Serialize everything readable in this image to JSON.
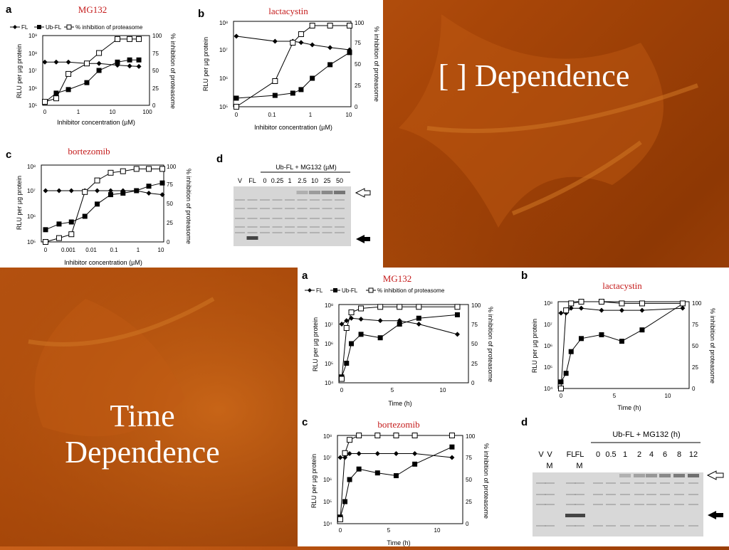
{
  "slide": {
    "title_right": "[ ]  Dependence",
    "title_left_line1": "Time",
    "title_left_line2": "Dependence",
    "colors": {
      "background": "#a84608",
      "label_red": "#c41a1a"
    }
  },
  "legend": {
    "fl": "FL",
    "ubfl": "Ub-FL",
    "inh": "% inhibition of proteasome"
  },
  "top_figure": {
    "panels": {
      "a": {
        "letter": "a",
        "label": "MG132"
      },
      "b": {
        "letter": "b",
        "label": "lactacystin"
      },
      "c": {
        "letter": "c",
        "label": "bortezomib"
      },
      "d": {
        "letter": "d"
      }
    },
    "ylabel": "RLU per µg protein",
    "y2label": "% inhibition of proteasome",
    "xlabel": "Inhibitor concentration (µM)",
    "y2_ticks": [
      "0",
      "25",
      "50",
      "75",
      "100"
    ],
    "a_y_ticks": [
      "10⁵",
      "10⁶",
      "10⁷",
      "10⁸",
      "10⁹"
    ],
    "a_x_ticks": [
      "0",
      "1",
      "10",
      "100"
    ],
    "b_y_ticks": [
      "10⁵",
      "10⁶",
      "10⁷",
      "10⁸"
    ],
    "b_x_ticks": [
      "0",
      "0.1",
      "1",
      "10"
    ],
    "c_y_ticks": [
      "10⁵",
      "10⁶",
      "10⁷",
      "10⁸"
    ],
    "c_x_ticks": [
      "0",
      "0.001",
      "0.01",
      "0.1",
      "1",
      "10"
    ],
    "gel": {
      "header": "Ub-FL + MG132 (µM)",
      "lanes": [
        "V",
        "FL",
        "0",
        "0.25",
        "1",
        "2.5",
        "10",
        "25",
        "50"
      ]
    }
  },
  "bottom_figure": {
    "panels": {
      "a": {
        "letter": "a",
        "label": "MG132"
      },
      "b": {
        "letter": "b",
        "label": "lactacystin"
      },
      "c": {
        "letter": "c",
        "label": "bortezomib"
      },
      "d": {
        "letter": "d"
      }
    },
    "ylabel": "RLU per µg protein",
    "y2label": "% inhibition of proteasome",
    "xlabel": "Time (h)",
    "y_ticks": [
      "10⁴",
      "10⁵",
      "10⁶",
      "10⁷",
      "10⁸"
    ],
    "y2_ticks": [
      "0",
      "25",
      "50",
      "75",
      "100"
    ],
    "x_ticks": [
      "0",
      "5",
      "10"
    ],
    "gel": {
      "header": "Ub-FL + MG132 (h)",
      "lanes": [
        "V",
        "V",
        "FL",
        "FL",
        "0",
        "0.5",
        "1",
        "2",
        "4",
        "6",
        "8",
        "12"
      ],
      "sublanes": [
        "M",
        "M"
      ]
    }
  },
  "chart_data": [
    {
      "type": "line",
      "title": "MG132",
      "xlabel": "Inhibitor concentration (µM)",
      "ylabel": "RLU per µg protein",
      "y2label": "% inhibition of proteasome",
      "x": [
        0,
        0.1,
        0.25,
        1,
        2.5,
        10,
        25,
        50
      ],
      "series": [
        {
          "name": "FL",
          "values": [
            30000000,
            30000000,
            30000000,
            25000000,
            25000000,
            20000000,
            18000000,
            17000000
          ]
        },
        {
          "name": "Ub-FL",
          "values": [
            150000,
            500000,
            800000,
            2000000,
            10000000,
            30000000,
            40000000,
            40000000
          ]
        },
        {
          "name": "% inhibition of proteasome",
          "values": [
            5,
            10,
            45,
            60,
            75,
            95,
            95,
            95
          ]
        }
      ]
    },
    {
      "type": "line",
      "title": "lactacystin",
      "xlabel": "Inhibitor concentration (µM)",
      "x": [
        0,
        0.1,
        0.3,
        0.5,
        1,
        3,
        10
      ],
      "series": [
        {
          "name": "FL",
          "values": [
            30000000,
            20000000,
            20000000,
            18000000,
            15000000,
            12000000,
            10000000
          ]
        },
        {
          "name": "Ub-FL",
          "values": [
            200000,
            250000,
            300000,
            400000,
            1000000,
            3000000,
            8000000
          ]
        },
        {
          "name": "% inhibition of proteasome",
          "values": [
            0,
            30,
            75,
            85,
            95,
            95,
            95
          ]
        }
      ]
    },
    {
      "type": "line",
      "title": "bortezomib",
      "xlabel": "Inhibitor concentration (µM)",
      "x": [
        0,
        0.001,
        0.003,
        0.01,
        0.03,
        0.1,
        0.3,
        1,
        3,
        10
      ],
      "series": [
        {
          "name": "FL",
          "values": [
            10000000,
            10000000,
            10000000,
            10000000,
            10000000,
            10000000,
            10000000,
            10000000,
            8000000,
            7000000
          ]
        },
        {
          "name": "Ub-FL",
          "values": [
            300000,
            500000,
            600000,
            1000000,
            3000000,
            7000000,
            8000000,
            10000000,
            15000000,
            20000000
          ]
        },
        {
          "name": "% inhibition of proteasome",
          "values": [
            0,
            5,
            10,
            65,
            80,
            90,
            92,
            95,
            95,
            95
          ]
        }
      ]
    },
    {
      "type": "line",
      "title": "MG132",
      "xlabel": "Time (h)",
      "x": [
        0,
        0.5,
        1,
        2,
        4,
        6,
        8,
        12
      ],
      "series": [
        {
          "name": "FL",
          "values": [
            10000000,
            15000000,
            20000000,
            18000000,
            15000000,
            15000000,
            10000000,
            3000000
          ]
        },
        {
          "name": "Ub-FL",
          "values": [
            20000,
            100000,
            1000000,
            3000000,
            2000000,
            10000000,
            20000000,
            30000000
          ]
        },
        {
          "name": "% inhibition of proteasome",
          "values": [
            5,
            70,
            90,
            95,
            97,
            97,
            97,
            97
          ]
        }
      ]
    },
    {
      "type": "line",
      "title": "lactacystin",
      "xlabel": "Time (h)",
      "x": [
        0,
        0.5,
        1,
        2,
        4,
        6,
        8,
        12
      ],
      "series": [
        {
          "name": "FL",
          "values": [
            30000000,
            30000000,
            50000000,
            50000000,
            40000000,
            40000000,
            40000000,
            50000000
          ]
        },
        {
          "name": "Ub-FL",
          "values": [
            20000,
            50000,
            500000,
            2000000,
            3000000,
            1500000,
            5000000,
            80000000
          ]
        },
        {
          "name": "% inhibition of proteasome",
          "values": [
            0,
            90,
            98,
            100,
            100,
            98,
            98,
            98
          ]
        }
      ]
    },
    {
      "type": "line",
      "title": "bortezomib",
      "xlabel": "Time (h)",
      "x": [
        0,
        0.5,
        1,
        2,
        4,
        6,
        8,
        12
      ],
      "series": [
        {
          "name": "FL",
          "values": [
            10000000,
            10000000,
            15000000,
            15000000,
            15000000,
            15000000,
            15000000,
            10000000
          ]
        },
        {
          "name": "Ub-FL",
          "values": [
            20000,
            100000,
            1000000,
            3000000,
            2000000,
            1500000,
            5000000,
            30000000
          ]
        },
        {
          "name": "% inhibition of proteasome",
          "values": [
            5,
            80,
            95,
            100,
            100,
            100,
            100,
            100
          ]
        }
      ]
    }
  ]
}
